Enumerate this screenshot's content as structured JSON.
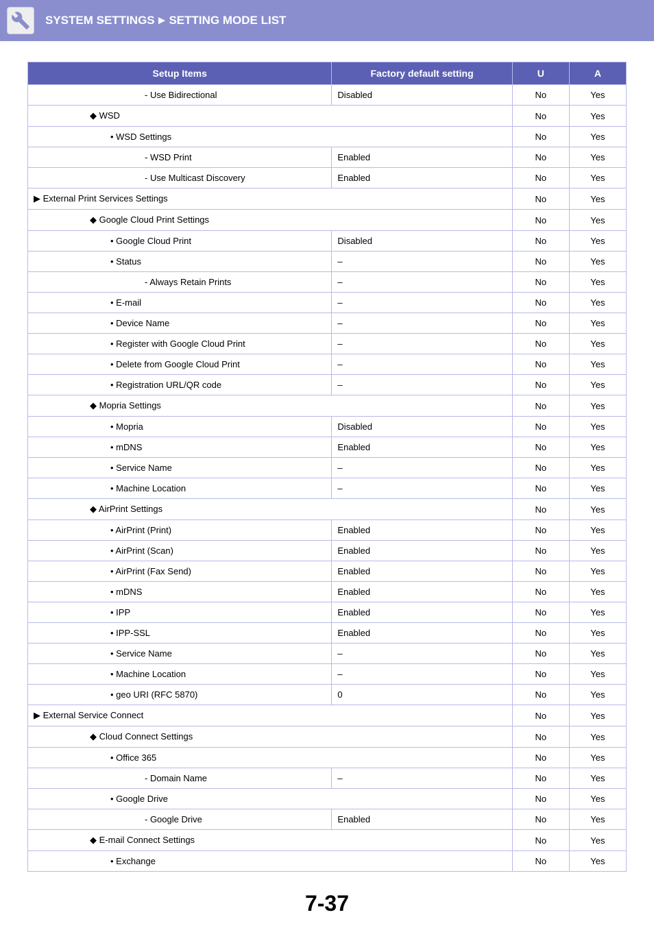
{
  "header": {
    "title_left": "SYSTEM SETTINGS",
    "title_right": "SETTING MODE LIST",
    "arrow": "►"
  },
  "table": {
    "headers": {
      "item": "Setup Items",
      "default": "Factory default setting",
      "u": "U",
      "a": "A"
    },
    "rows": [
      {
        "indent": 4,
        "prefix": "-  ",
        "label": "Use Bidirectional",
        "default": "Disabled",
        "span": false,
        "u": "No",
        "a": "Yes"
      },
      {
        "indent": 1,
        "prefix": "◆ ",
        "label": "WSD",
        "default": "",
        "span": true,
        "u": "No",
        "a": "Yes"
      },
      {
        "indent": 2,
        "prefix": "• ",
        "label": "WSD Settings",
        "default": "",
        "span": true,
        "u": "No",
        "a": "Yes"
      },
      {
        "indent": 4,
        "prefix": "-  ",
        "label": "WSD Print",
        "default": "Enabled",
        "span": false,
        "u": "No",
        "a": "Yes"
      },
      {
        "indent": 4,
        "prefix": "-  ",
        "label": "Use Multicast Discovery",
        "default": "Enabled",
        "span": false,
        "u": "No",
        "a": "Yes"
      },
      {
        "indent": 0,
        "prefix": "▶ ",
        "label": "External Print Services Settings",
        "default": "",
        "span": true,
        "u": "No",
        "a": "Yes"
      },
      {
        "indent": 1,
        "prefix": "◆ ",
        "label": "Google Cloud Print Settings",
        "default": "",
        "span": true,
        "u": "No",
        "a": "Yes"
      },
      {
        "indent": 2,
        "prefix": "• ",
        "label": "Google Cloud Print",
        "default": "Disabled",
        "span": false,
        "u": "No",
        "a": "Yes"
      },
      {
        "indent": 2,
        "prefix": "• ",
        "label": "Status",
        "default": "–",
        "span": false,
        "u": "No",
        "a": "Yes"
      },
      {
        "indent": 4,
        "prefix": "-  ",
        "label": "Always Retain Prints",
        "default": "–",
        "span": false,
        "u": "No",
        "a": "Yes"
      },
      {
        "indent": 2,
        "prefix": "• ",
        "label": "E-mail",
        "default": "–",
        "span": false,
        "u": "No",
        "a": "Yes"
      },
      {
        "indent": 2,
        "prefix": "• ",
        "label": "Device Name",
        "default": "–",
        "span": false,
        "u": "No",
        "a": "Yes"
      },
      {
        "indent": 2,
        "prefix": "• ",
        "label": "Register with Google Cloud Print",
        "default": "–",
        "span": false,
        "u": "No",
        "a": "Yes"
      },
      {
        "indent": 2,
        "prefix": "• ",
        "label": "Delete from Google Cloud Print",
        "default": "–",
        "span": false,
        "u": "No",
        "a": "Yes"
      },
      {
        "indent": 2,
        "prefix": "• ",
        "label": "Registration URL/QR code",
        "default": "–",
        "span": false,
        "u": "No",
        "a": "Yes"
      },
      {
        "indent": 1,
        "prefix": "◆ ",
        "label": "Mopria Settings",
        "default": "",
        "span": true,
        "u": "No",
        "a": "Yes"
      },
      {
        "indent": 2,
        "prefix": "• ",
        "label": "Mopria",
        "default": "Disabled",
        "span": false,
        "u": "No",
        "a": "Yes"
      },
      {
        "indent": 2,
        "prefix": "• ",
        "label": "mDNS",
        "default": "Enabled",
        "span": false,
        "u": "No",
        "a": "Yes"
      },
      {
        "indent": 2,
        "prefix": "• ",
        "label": "Service Name",
        "default": "–",
        "span": false,
        "u": "No",
        "a": "Yes"
      },
      {
        "indent": 2,
        "prefix": "• ",
        "label": "Machine Location",
        "default": "–",
        "span": false,
        "u": "No",
        "a": "Yes"
      },
      {
        "indent": 1,
        "prefix": "◆ ",
        "label": "AirPrint Settings",
        "default": "",
        "span": true,
        "u": "No",
        "a": "Yes"
      },
      {
        "indent": 2,
        "prefix": "• ",
        "label": "AirPrint (Print)",
        "default": "Enabled",
        "span": false,
        "u": "No",
        "a": "Yes"
      },
      {
        "indent": 2,
        "prefix": "• ",
        "label": "AirPrint (Scan)",
        "default": "Enabled",
        "span": false,
        "u": "No",
        "a": "Yes"
      },
      {
        "indent": 2,
        "prefix": "• ",
        "label": "AirPrint (Fax Send)",
        "default": "Enabled",
        "span": false,
        "u": "No",
        "a": "Yes"
      },
      {
        "indent": 2,
        "prefix": "• ",
        "label": "mDNS",
        "default": "Enabled",
        "span": false,
        "u": "No",
        "a": "Yes"
      },
      {
        "indent": 2,
        "prefix": "• ",
        "label": "IPP",
        "default": "Enabled",
        "span": false,
        "u": "No",
        "a": "Yes"
      },
      {
        "indent": 2,
        "prefix": "• ",
        "label": "IPP-SSL",
        "default": "Enabled",
        "span": false,
        "u": "No",
        "a": "Yes"
      },
      {
        "indent": 2,
        "prefix": "• ",
        "label": "Service Name",
        "default": "–",
        "span": false,
        "u": "No",
        "a": "Yes"
      },
      {
        "indent": 2,
        "prefix": "• ",
        "label": "Machine Location",
        "default": "–",
        "span": false,
        "u": "No",
        "a": "Yes"
      },
      {
        "indent": 2,
        "prefix": "• ",
        "label": "geo URI (RFC 5870)",
        "default": "0",
        "span": false,
        "u": "No",
        "a": "Yes"
      },
      {
        "indent": 0,
        "prefix": "▶ ",
        "label": "External Service Connect",
        "default": "",
        "span": true,
        "u": "No",
        "a": "Yes"
      },
      {
        "indent": 1,
        "prefix": "◆ ",
        "label": "Cloud Connect Settings",
        "default": "",
        "span": true,
        "u": "No",
        "a": "Yes"
      },
      {
        "indent": 2,
        "prefix": "• ",
        "label": "Office 365",
        "default": "",
        "span": true,
        "u": "No",
        "a": "Yes"
      },
      {
        "indent": 4,
        "prefix": "-  ",
        "label": "Domain Name",
        "default": "–",
        "span": false,
        "u": "No",
        "a": "Yes"
      },
      {
        "indent": 2,
        "prefix": "• ",
        "label": "Google Drive",
        "default": "",
        "span": true,
        "u": "No",
        "a": "Yes"
      },
      {
        "indent": 4,
        "prefix": "-  ",
        "label": "Google Drive",
        "default": "Enabled",
        "span": false,
        "u": "No",
        "a": "Yes"
      },
      {
        "indent": 1,
        "prefix": "◆ ",
        "label": "E-mail Connect Settings",
        "default": "",
        "span": true,
        "u": "No",
        "a": "Yes"
      },
      {
        "indent": 2,
        "prefix": "• ",
        "label": "Exchange",
        "default": "",
        "span": true,
        "u": "No",
        "a": "Yes"
      }
    ]
  },
  "page_number": "7-37",
  "style": {
    "header_bg": "#8a8ecf",
    "table_header_bg": "#5b60b4",
    "border_color": "#b8baea",
    "text_color": "#000000",
    "header_text_color": "#ffffff",
    "font_size_body": 13,
    "font_size_header": 14,
    "font_size_title": 17,
    "font_size_page": 32
  }
}
